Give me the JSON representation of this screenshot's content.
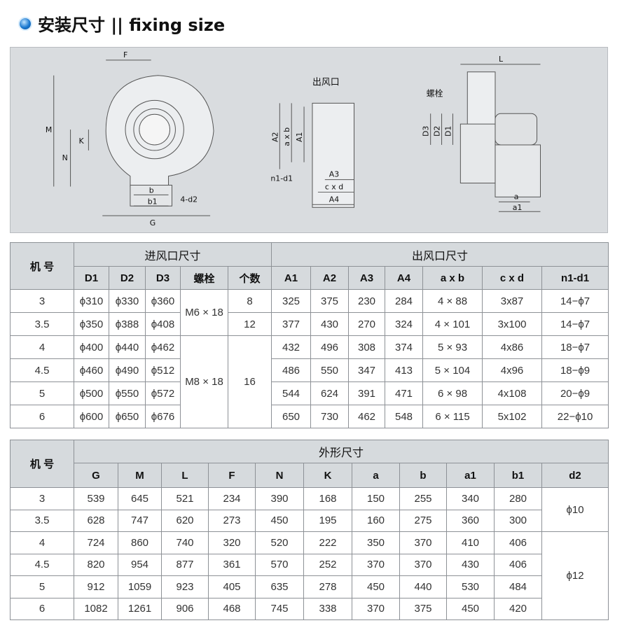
{
  "title": "安装尺寸 || fixing size",
  "diagram": {
    "side": {
      "F": "F",
      "M": "M",
      "N": "N",
      "K": "K",
      "b": "b",
      "b1": "b1",
      "d2": "4-d2",
      "G": "G"
    },
    "outlet": {
      "title": "出风口",
      "A2": "A2",
      "axb": "a x b",
      "A1": "A1",
      "n1d1": "n1-d1",
      "A3": "A3",
      "cxd": "c x d",
      "A4": "A4"
    },
    "front": {
      "bolt": "螺栓",
      "D3": "D3",
      "D2": "D2",
      "D1": "D1",
      "L": "L",
      "a": "a",
      "a1": "a1"
    }
  },
  "table1": {
    "model_header": "机 号",
    "inlet_header": "进风口尺寸",
    "outlet_header": "出风口尺寸",
    "columns": [
      "D1",
      "D2",
      "D3",
      "螺栓",
      "个数",
      "A1",
      "A2",
      "A3",
      "A4",
      "a x b",
      "c x d",
      "n1-d1"
    ],
    "rows": [
      [
        "3",
        "ϕ310",
        "ϕ330",
        "ϕ360",
        "M6 × 18",
        "8",
        "325",
        "375",
        "230",
        "284",
        "4 × 88",
        "3x87",
        "14−ϕ7"
      ],
      [
        "3.5",
        "ϕ350",
        "ϕ388",
        "ϕ408",
        "",
        "12",
        "377",
        "430",
        "270",
        "324",
        "4 × 101",
        "3x100",
        "14−ϕ7"
      ],
      [
        "4",
        "ϕ400",
        "ϕ440",
        "ϕ462",
        "M8 × 18",
        "16",
        "432",
        "496",
        "308",
        "374",
        "5 × 93",
        "4x86",
        "18−ϕ7"
      ],
      [
        "4.5",
        "ϕ460",
        "ϕ490",
        "ϕ512",
        "",
        "",
        "486",
        "550",
        "347",
        "413",
        "5 × 104",
        "4x96",
        "18−ϕ9"
      ],
      [
        "5",
        "ϕ500",
        "ϕ550",
        "ϕ572",
        "",
        "",
        "544",
        "624",
        "391",
        "471",
        "6 × 98",
        "4x108",
        "20−ϕ9"
      ],
      [
        "6",
        "ϕ600",
        "ϕ650",
        "ϕ676",
        "",
        "",
        "650",
        "730",
        "462",
        "548",
        "6 × 115",
        "5x102",
        "22−ϕ10"
      ]
    ]
  },
  "table2": {
    "model_header": "机 号",
    "group_header": "外形尺寸",
    "columns": [
      "G",
      "M",
      "L",
      "F",
      "N",
      "K",
      "a",
      "b",
      "a1",
      "b1",
      "d2"
    ],
    "rows": [
      [
        "3",
        "539",
        "645",
        "521",
        "234",
        "390",
        "168",
        "150",
        "255",
        "340",
        "280",
        "ϕ10"
      ],
      [
        "3.5",
        "628",
        "747",
        "620",
        "273",
        "450",
        "195",
        "160",
        "275",
        "360",
        "300",
        ""
      ],
      [
        "4",
        "724",
        "860",
        "740",
        "320",
        "520",
        "222",
        "350",
        "370",
        "410",
        "406",
        "ϕ12"
      ],
      [
        "4.5",
        "820",
        "954",
        "877",
        "361",
        "570",
        "252",
        "370",
        "370",
        "430",
        "406",
        ""
      ],
      [
        "5",
        "912",
        "1059",
        "923",
        "405",
        "635",
        "278",
        "450",
        "440",
        "530",
        "484",
        ""
      ],
      [
        "6",
        "1082",
        "1261",
        "906",
        "468",
        "745",
        "338",
        "370",
        "375",
        "450",
        "420",
        ""
      ]
    ]
  },
  "colors": {
    "header_bg": "#d6dadd",
    "drawing_bg": "#d9dcdf",
    "icon_blue": "#1a78d0"
  }
}
